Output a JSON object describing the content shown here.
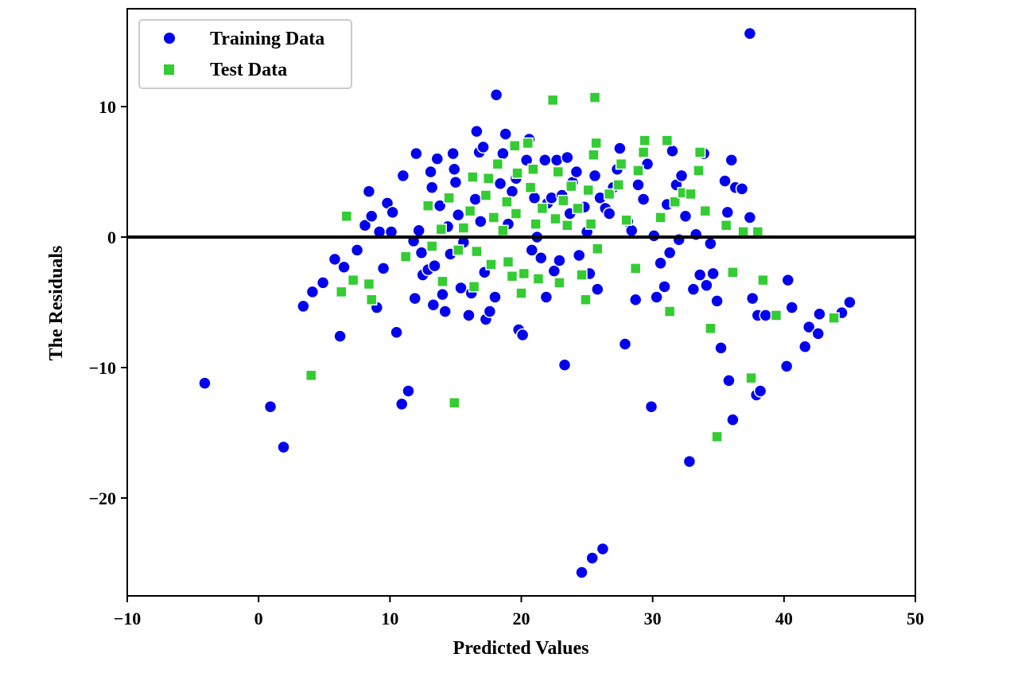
{
  "chart_data": {
    "type": "scatter",
    "title": "",
    "xlabel": "Predicted Values",
    "ylabel": "The Residuals",
    "xlim": [
      -10,
      50
    ],
    "ylim": [
      -27.5,
      17.5
    ],
    "xticks": [
      -10,
      0,
      10,
      20,
      30,
      40,
      50
    ],
    "yticks": [
      -20,
      -10,
      0,
      10
    ],
    "tick_labels_x": [
      "−10",
      "0",
      "10",
      "20",
      "30",
      "40",
      "50"
    ],
    "tick_labels_y": [
      "−20",
      "−10",
      "0",
      "10"
    ],
    "hline": {
      "y": 0,
      "color": "#000000"
    },
    "legend": {
      "location": "top-left"
    },
    "series": [
      {
        "name": "Training Data",
        "marker": "circle",
        "color": "#0000ee",
        "points": [
          [
            -4.1,
            -11.2
          ],
          [
            0.9,
            -13.0
          ],
          [
            1.9,
            -16.1
          ],
          [
            3.4,
            -5.3
          ],
          [
            4.1,
            -4.2
          ],
          [
            4.9,
            -3.5
          ],
          [
            5.8,
            -1.7
          ],
          [
            6.2,
            -7.6
          ],
          [
            6.5,
            -2.3
          ],
          [
            7.5,
            -1.0
          ],
          [
            8.1,
            0.9
          ],
          [
            8.4,
            3.5
          ],
          [
            8.6,
            1.6
          ],
          [
            9.0,
            -5.4
          ],
          [
            9.2,
            0.4
          ],
          [
            9.5,
            -2.4
          ],
          [
            9.8,
            2.6
          ],
          [
            10.1,
            0.4
          ],
          [
            10.2,
            1.9
          ],
          [
            10.5,
            -7.3
          ],
          [
            10.9,
            -12.8
          ],
          [
            11.0,
            4.7
          ],
          [
            11.4,
            -11.8
          ],
          [
            11.8,
            -0.3
          ],
          [
            11.9,
            -4.7
          ],
          [
            12.0,
            6.4
          ],
          [
            12.2,
            0.5
          ],
          [
            12.4,
            -1.2
          ],
          [
            12.5,
            -2.9
          ],
          [
            12.9,
            -2.5
          ],
          [
            13.1,
            5.0
          ],
          [
            13.2,
            3.8
          ],
          [
            13.3,
            -5.2
          ],
          [
            13.4,
            -2.2
          ],
          [
            13.6,
            6.0
          ],
          [
            13.8,
            2.4
          ],
          [
            14.0,
            -4.4
          ],
          [
            14.2,
            -5.7
          ],
          [
            14.4,
            0.8
          ],
          [
            14.6,
            -1.3
          ],
          [
            14.8,
            6.4
          ],
          [
            14.9,
            5.2
          ],
          [
            15.0,
            4.2
          ],
          [
            15.2,
            1.7
          ],
          [
            15.4,
            -3.9
          ],
          [
            15.6,
            -0.4
          ],
          [
            16.0,
            -6.0
          ],
          [
            16.2,
            -4.3
          ],
          [
            16.5,
            2.9
          ],
          [
            16.6,
            8.1
          ],
          [
            16.8,
            6.5
          ],
          [
            16.9,
            1.2
          ],
          [
            17.1,
            6.9
          ],
          [
            17.2,
            -2.7
          ],
          [
            17.3,
            -6.3
          ],
          [
            17.6,
            -5.7
          ],
          [
            18.0,
            -4.6
          ],
          [
            18.1,
            10.9
          ],
          [
            18.4,
            4.1
          ],
          [
            18.6,
            6.4
          ],
          [
            18.8,
            7.9
          ],
          [
            19.0,
            1.0
          ],
          [
            19.3,
            3.5
          ],
          [
            19.6,
            4.5
          ],
          [
            19.8,
            -7.1
          ],
          [
            20.1,
            -7.5
          ],
          [
            20.4,
            5.9
          ],
          [
            20.6,
            7.5
          ],
          [
            20.8,
            -1.0
          ],
          [
            21.0,
            3.0
          ],
          [
            21.2,
            0.0
          ],
          [
            21.5,
            -1.6
          ],
          [
            21.8,
            5.9
          ],
          [
            21.9,
            -4.6
          ],
          [
            22.0,
            2.6
          ],
          [
            22.3,
            3.0
          ],
          [
            22.5,
            -2.6
          ],
          [
            22.7,
            5.9
          ],
          [
            22.9,
            -1.8
          ],
          [
            23.1,
            3.2
          ],
          [
            23.3,
            -9.8
          ],
          [
            23.5,
            6.1
          ],
          [
            23.7,
            1.8
          ],
          [
            23.9,
            4.2
          ],
          [
            24.2,
            5.0
          ],
          [
            24.4,
            -1.4
          ],
          [
            24.6,
            -25.7
          ],
          [
            24.8,
            2.3
          ],
          [
            25.0,
            0.4
          ],
          [
            25.2,
            -2.8
          ],
          [
            25.4,
            -24.6
          ],
          [
            25.6,
            4.7
          ],
          [
            25.8,
            -4.0
          ],
          [
            26.0,
            3.0
          ],
          [
            26.2,
            -23.9
          ],
          [
            26.4,
            2.2
          ],
          [
            26.7,
            1.8
          ],
          [
            27.0,
            3.8
          ],
          [
            27.3,
            5.2
          ],
          [
            27.5,
            6.8
          ],
          [
            27.9,
            -8.2
          ],
          [
            28.1,
            1.2
          ],
          [
            28.4,
            0.5
          ],
          [
            28.7,
            -4.8
          ],
          [
            28.9,
            4.0
          ],
          [
            29.3,
            2.9
          ],
          [
            29.6,
            5.6
          ],
          [
            29.9,
            -13.0
          ],
          [
            30.1,
            0.1
          ],
          [
            30.3,
            -4.6
          ],
          [
            30.6,
            -2.0
          ],
          [
            30.9,
            -3.8
          ],
          [
            31.1,
            2.5
          ],
          [
            31.3,
            -1.2
          ],
          [
            31.5,
            6.6
          ],
          [
            31.8,
            4.0
          ],
          [
            32.0,
            -0.2
          ],
          [
            32.2,
            4.7
          ],
          [
            32.5,
            1.6
          ],
          [
            32.8,
            -17.2
          ],
          [
            33.1,
            -4.0
          ],
          [
            33.3,
            0.2
          ],
          [
            33.6,
            -2.9
          ],
          [
            33.9,
            6.4
          ],
          [
            34.1,
            -3.7
          ],
          [
            34.4,
            -0.5
          ],
          [
            34.6,
            -2.8
          ],
          [
            34.9,
            -4.9
          ],
          [
            35.2,
            -8.5
          ],
          [
            35.5,
            4.3
          ],
          [
            35.7,
            1.9
          ],
          [
            35.8,
            -11.0
          ],
          [
            36.0,
            5.9
          ],
          [
            36.1,
            -14.0
          ],
          [
            36.3,
            3.8
          ],
          [
            36.8,
            3.7
          ],
          [
            37.4,
            1.5
          ],
          [
            37.6,
            -4.7
          ],
          [
            37.9,
            -12.1
          ],
          [
            38.0,
            -6.0
          ],
          [
            38.2,
            -11.8
          ],
          [
            38.6,
            -6.0
          ],
          [
            40.2,
            -9.9
          ],
          [
            40.3,
            -3.3
          ],
          [
            40.6,
            -5.4
          ],
          [
            41.6,
            -8.4
          ],
          [
            41.9,
            -6.9
          ],
          [
            42.6,
            -7.4
          ],
          [
            42.7,
            -5.9
          ],
          [
            44.4,
            -5.8
          ],
          [
            45.0,
            -5.0
          ],
          [
            37.4,
            15.6
          ]
        ]
      },
      {
        "name": "Test Data",
        "marker": "square",
        "color": "#33cc33",
        "points": [
          [
            4.0,
            -10.6
          ],
          [
            6.3,
            -4.2
          ],
          [
            6.7,
            1.6
          ],
          [
            7.2,
            -3.3
          ],
          [
            8.4,
            -3.6
          ],
          [
            8.6,
            -4.8
          ],
          [
            11.2,
            -1.5
          ],
          [
            12.9,
            2.4
          ],
          [
            13.2,
            -0.7
          ],
          [
            13.9,
            0.6
          ],
          [
            14.0,
            -3.4
          ],
          [
            14.5,
            3.0
          ],
          [
            14.9,
            -12.7
          ],
          [
            15.2,
            -1.0
          ],
          [
            15.6,
            0.7
          ],
          [
            16.1,
            2.0
          ],
          [
            16.3,
            4.6
          ],
          [
            16.4,
            -3.8
          ],
          [
            16.6,
            -1.1
          ],
          [
            17.3,
            3.2
          ],
          [
            17.5,
            4.5
          ],
          [
            17.7,
            -2.1
          ],
          [
            17.9,
            1.5
          ],
          [
            18.2,
            5.6
          ],
          [
            18.6,
            0.5
          ],
          [
            18.9,
            2.7
          ],
          [
            19.0,
            -1.9
          ],
          [
            19.3,
            -3.0
          ],
          [
            19.5,
            7.0
          ],
          [
            19.6,
            1.8
          ],
          [
            19.7,
            4.9
          ],
          [
            20.0,
            -4.3
          ],
          [
            20.2,
            -2.8
          ],
          [
            20.5,
            7.2
          ],
          [
            20.7,
            3.8
          ],
          [
            20.9,
            5.2
          ],
          [
            21.1,
            1.0
          ],
          [
            21.3,
            -3.2
          ],
          [
            21.6,
            2.2
          ],
          [
            22.4,
            10.5
          ],
          [
            22.6,
            1.4
          ],
          [
            22.8,
            5.0
          ],
          [
            22.9,
            -3.5
          ],
          [
            23.2,
            2.8
          ],
          [
            23.5,
            0.9
          ],
          [
            23.8,
            3.9
          ],
          [
            24.3,
            2.2
          ],
          [
            24.6,
            -2.9
          ],
          [
            24.9,
            -4.8
          ],
          [
            25.1,
            3.6
          ],
          [
            25.3,
            1.0
          ],
          [
            25.5,
            6.3
          ],
          [
            25.6,
            10.7
          ],
          [
            25.7,
            7.2
          ],
          [
            25.8,
            -0.9
          ],
          [
            26.7,
            3.3
          ],
          [
            27.4,
            4.0
          ],
          [
            27.6,
            5.6
          ],
          [
            28.0,
            1.3
          ],
          [
            28.7,
            -2.4
          ],
          [
            28.9,
            5.1
          ],
          [
            29.3,
            6.5
          ],
          [
            29.4,
            7.4
          ],
          [
            30.6,
            1.5
          ],
          [
            31.1,
            7.4
          ],
          [
            31.3,
            -5.7
          ],
          [
            31.7,
            2.7
          ],
          [
            32.3,
            3.4
          ],
          [
            32.9,
            3.3
          ],
          [
            33.5,
            5.1
          ],
          [
            33.6,
            6.5
          ],
          [
            34.0,
            2.0
          ],
          [
            34.4,
            -7.0
          ],
          [
            34.9,
            -15.3
          ],
          [
            35.6,
            0.9
          ],
          [
            36.1,
            -2.7
          ],
          [
            36.9,
            0.4
          ],
          [
            37.5,
            -10.8
          ],
          [
            38.0,
            0.4
          ],
          [
            38.4,
            -3.3
          ],
          [
            39.4,
            -6.0
          ],
          [
            43.8,
            -6.2
          ]
        ]
      }
    ]
  }
}
